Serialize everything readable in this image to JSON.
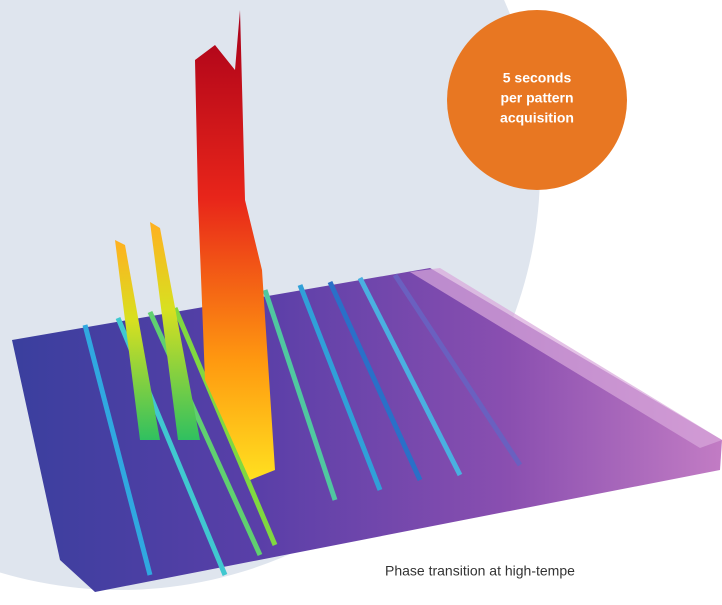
{
  "badge": {
    "lines": [
      "5 seconds",
      "per pattern",
      "acquisition"
    ]
  },
  "caption": "Phase transition at high-tempe"
}
